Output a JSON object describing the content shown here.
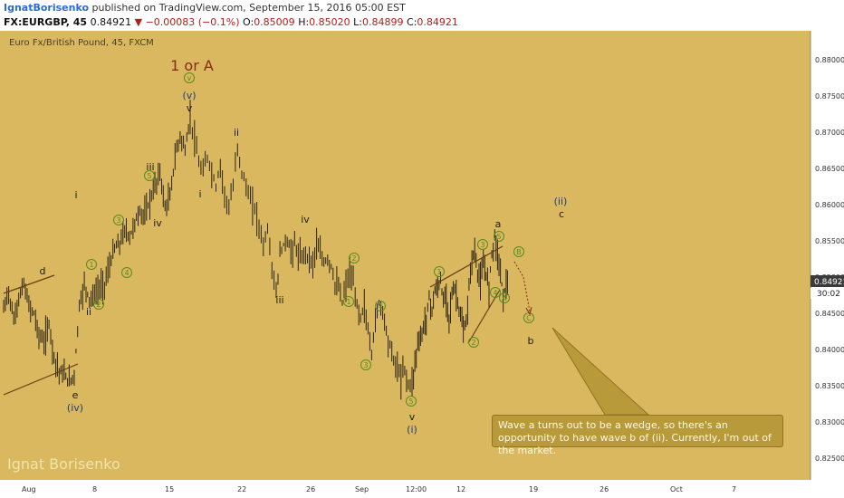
{
  "header": {
    "author": "IgnatBorisenko",
    "published": "published on TradingView.com, September 15, 2016 05:00 EST",
    "symbol": "FX:EURGBP, 45",
    "last": "0.84921",
    "change_arrow": "▼",
    "change": "−0.00083 (−0.1%)",
    "o_label": "O:",
    "o": "0.85009",
    "h_label": "H:",
    "h": "0.85020",
    "l_label": "L:",
    "l": "0.84899",
    "c_label": "C:",
    "c": "0.84921"
  },
  "chart_data": {
    "type": "candlestick",
    "title": "Euro Fx/British Pound, 45, FXCM",
    "x_ticks": [
      "Aug",
      "8",
      "15",
      "22",
      "26",
      "Sep",
      "12:00",
      "12",
      "19",
      "26",
      "Oct",
      "7"
    ],
    "y_ticks": [
      "0.88000",
      "0.87500",
      "0.87000",
      "0.86500",
      "0.86000",
      "0.85500",
      "0.85000",
      "0.84500",
      "0.84000",
      "0.83500",
      "0.83000",
      "0.82500"
    ],
    "y_tick_values": [
      0.88,
      0.875,
      0.87,
      0.865,
      0.86,
      0.855,
      0.85,
      0.845,
      0.84,
      0.835,
      0.83,
      0.825
    ],
    "ylim": [
      0.822,
      0.884
    ],
    "last_price_label": "0.84921",
    "countdown_label": "30:02",
    "price_path": [
      [
        0.8455,
        0.848,
        0.844,
        0.847,
        0.849,
        0.846,
        0.845,
        0.842,
        0.841,
        0.8435,
        0.839,
        0.837,
        0.8365,
        0.8355,
        0.8365
      ],
      [
        0.8365,
        0.846,
        0.849,
        0.847,
        0.8475,
        0.8485,
        0.849,
        0.8515,
        0.854,
        0.8545,
        0.8565,
        0.8555,
        0.8575,
        0.859,
        0.8585,
        0.8605,
        0.8625,
        0.8645,
        0.8595,
        0.861,
        0.8665,
        0.8695,
        0.8675,
        0.872
      ],
      [
        0.872,
        0.869,
        0.8655,
        0.8645,
        0.8665,
        0.8645,
        0.8625,
        0.8655,
        0.8615,
        0.8595,
        0.8625,
        0.868,
        0.8645,
        0.8625,
        0.8605,
        0.8595,
        0.857,
        0.8545,
        0.8565,
        0.8515,
        0.8475
      ],
      [
        0.8475,
        0.853,
        0.8545,
        0.855,
        0.8535,
        0.8545,
        0.853,
        0.8525,
        0.8535,
        0.8525,
        0.852,
        0.8545,
        0.853,
        0.852,
        0.8525,
        0.8515,
        0.849,
        0.8485,
        0.8465,
        0.849,
        0.8505,
        0.849,
        0.846,
        0.8445,
        0.846,
        0.8425,
        0.8395,
        0.844,
        0.8465,
        0.8455,
        0.8425,
        0.8405,
        0.8385,
        0.8375,
        0.836,
        0.8375,
        0.835,
        0.8355
      ],
      [
        0.8355,
        0.838,
        0.841,
        0.8415,
        0.843,
        0.8445,
        0.847,
        0.8455,
        0.848,
        0.8485,
        0.8495,
        0.8465,
        0.8475,
        0.8445,
        0.8475,
        0.8485,
        0.8465,
        0.8445,
        0.8425,
        0.8435,
        0.8485,
        0.8525,
        0.8535,
        0.8505,
        0.8495,
        0.8515,
        0.8505,
        0.8485,
        0.8535,
        0.8555,
        0.8535,
        0.8505,
        0.8475,
        0.849,
        0.8492
      ]
    ],
    "lines": [
      {
        "from": [
          "start",
          0.8485
        ],
        "to": [
          "d",
          0.8502
        ]
      },
      {
        "from": [
          "start",
          0.8335
        ],
        "to": [
          "e",
          0.8378
        ]
      },
      {
        "from": [
          "wave1",
          0.8485
        ],
        "to": [
          "a",
          0.8555
        ]
      },
      {
        "from": [
          "wave2b",
          0.841
        ],
        "to": [
          "a",
          0.8545
        ]
      }
    ],
    "labels": [
      {
        "text": "1 or A",
        "color": "#8b2a16"
      },
      {
        "text": "v",
        "style": "circle"
      },
      {
        "text": "(v)",
        "color": "#1d3e78"
      },
      {
        "text": "v"
      },
      {
        "text": "ii"
      },
      {
        "text": "iii"
      },
      {
        "text": "5",
        "style": "circle"
      },
      {
        "text": "i"
      },
      {
        "text": "3",
        "style": "circle"
      },
      {
        "text": "iv"
      },
      {
        "text": "4",
        "style": "circle"
      },
      {
        "text": "i"
      },
      {
        "text": "1",
        "style": "circle"
      },
      {
        "text": "ii"
      },
      {
        "text": "2",
        "style": "circle"
      },
      {
        "text": "d"
      },
      {
        "text": "e"
      },
      {
        "text": "(iv)",
        "color": "#1d3e78"
      },
      {
        "text": "iv"
      },
      {
        "text": "iii"
      },
      {
        "text": "2",
        "style": "circle"
      },
      {
        "text": "1",
        "style": "circle"
      },
      {
        "text": "4",
        "style": "circle"
      },
      {
        "text": "3",
        "style": "circle"
      },
      {
        "text": "5",
        "style": "circle"
      },
      {
        "text": "v"
      },
      {
        "text": "(i)",
        "color": "#1d3e78"
      },
      {
        "text": "1",
        "style": "circle"
      },
      {
        "text": "2",
        "style": "circle"
      },
      {
        "text": "3",
        "style": "circle"
      },
      {
        "text": "5",
        "style": "circle"
      },
      {
        "text": "4",
        "style": "circle"
      },
      {
        "text": "A",
        "style": "circle"
      },
      {
        "text": "a"
      },
      {
        "text": "B",
        "style": "circle"
      },
      {
        "text": "C",
        "style": "circle"
      },
      {
        "text": "b"
      },
      {
        "text": "(ii)",
        "color": "#1d3e78"
      },
      {
        "text": "c"
      }
    ],
    "annotation": "Wave a turns out to be a wedge, so there's an opportunity to have wave b of (ii). Currently, I'm out of the market.",
    "watermark": "Ignat Borisenko"
  },
  "colors": {
    "background": "#d9b85f",
    "bar": "#2a2316",
    "wave_text": "#1f1a10",
    "circle_label": "#5a8a1e",
    "blue_label": "#1d3e78",
    "red_label": "#8b2a16"
  }
}
